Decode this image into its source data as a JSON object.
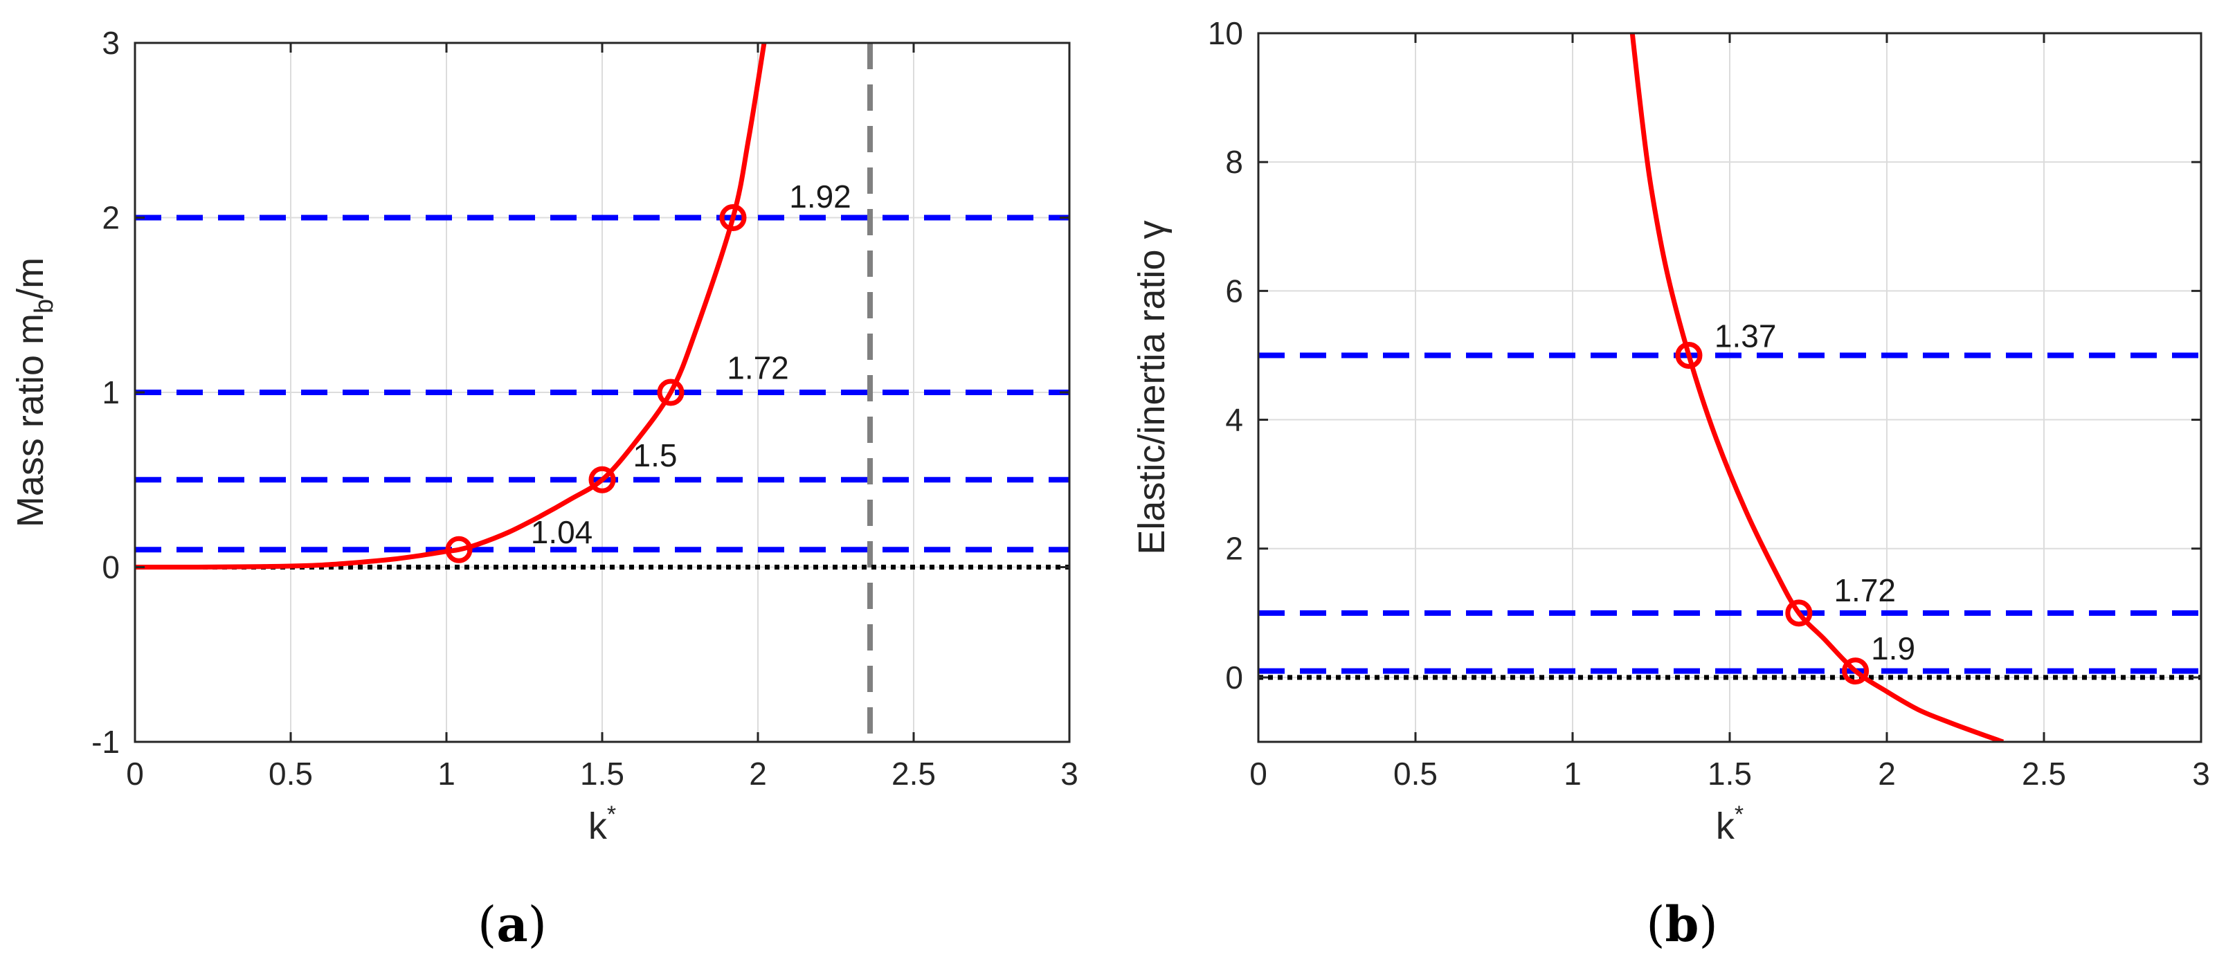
{
  "chart_data": [
    {
      "type": "line",
      "panel": "a",
      "caption": {
        "open": "(",
        "letter": "a",
        "close": ")"
      },
      "ylabel": {
        "prefix": "Mass ratio m",
        "sub": "b",
        "suffix": "/m"
      },
      "xlabel": {
        "base": "k",
        "sup": "*"
      },
      "xlim": [
        0,
        3
      ],
      "ylim": [
        -1,
        3
      ],
      "xticks": [
        0,
        0.5,
        1,
        1.5,
        2,
        2.5,
        3
      ],
      "xtick_labels": [
        "0",
        "0.5",
        "1",
        "1.5",
        "2",
        "2.5",
        "3"
      ],
      "yticks": [
        -1,
        0,
        1,
        2,
        3
      ],
      "ytick_labels": [
        "-1",
        "0",
        "1",
        "2",
        "3"
      ],
      "grid": true,
      "curve": {
        "color": "#ff0000",
        "x": [
          0.0,
          0.2,
          0.4,
          0.6,
          0.8,
          0.9,
          1.0,
          1.04,
          1.1,
          1.2,
          1.3,
          1.4,
          1.5,
          1.6,
          1.72,
          1.8,
          1.92,
          1.97,
          2.02
        ],
        "y": [
          0.0,
          0.0,
          0.003,
          0.012,
          0.04,
          0.062,
          0.09,
          0.1,
          0.13,
          0.2,
          0.29,
          0.39,
          0.5,
          0.7,
          1.0,
          1.35,
          2.0,
          2.45,
          3.0
        ]
      },
      "markers": {
        "x": [
          1.04,
          1.5,
          1.72,
          1.92
        ],
        "y": [
          0.1,
          0.5,
          1.0,
          2.0
        ],
        "color": "#ff0000"
      },
      "hlines": {
        "values": [
          0.1,
          0.5,
          1.0,
          2.0
        ],
        "color": "#0000ff",
        "style": "dashed"
      },
      "zero_line": {
        "value": 0,
        "color": "#000000",
        "style": "dotted"
      },
      "vline": {
        "value": 2.36,
        "color": "#808080",
        "style": "dashed"
      },
      "annotations": [
        {
          "text": "1.04",
          "x": 1.37,
          "y": 0.2
        },
        {
          "text": "1.5",
          "x": 1.67,
          "y": 0.64
        },
        {
          "text": "1.72",
          "x": 2.0,
          "y": 1.14
        },
        {
          "text": "1.92",
          "x": 2.2,
          "y": 2.12
        }
      ]
    },
    {
      "type": "line",
      "panel": "b",
      "caption": {
        "open": "(",
        "letter": "b",
        "close": ")"
      },
      "ylabel": {
        "prefix": "Elastic/inertia ratio γ",
        "sub": "",
        "suffix": ""
      },
      "xlabel": {
        "base": "k",
        "sup": "*"
      },
      "xlim": [
        0,
        3
      ],
      "ylim": [
        -1,
        10
      ],
      "xticks": [
        0,
        0.5,
        1,
        1.5,
        2,
        2.5,
        3
      ],
      "xtick_labels": [
        "0",
        "0.5",
        "1",
        "1.5",
        "2",
        "2.5",
        "3"
      ],
      "yticks": [
        0,
        2,
        4,
        6,
        8,
        10
      ],
      "ytick_labels": [
        "0",
        "2",
        "4",
        "6",
        "8",
        "10"
      ],
      "grid": true,
      "curve": {
        "color": "#ff0000",
        "x": [
          1.19,
          1.22,
          1.25,
          1.3,
          1.37,
          1.45,
          1.55,
          1.65,
          1.72,
          1.8,
          1.9,
          2.0,
          2.1,
          2.2,
          2.3,
          2.37
        ],
        "y": [
          10.0,
          8.7,
          7.6,
          6.3,
          5.0,
          3.8,
          2.6,
          1.6,
          1.0,
          0.6,
          0.1,
          -0.22,
          -0.5,
          -0.7,
          -0.88,
          -1.0
        ]
      },
      "markers": {
        "x": [
          1.37,
          1.72,
          1.9
        ],
        "y": [
          5.0,
          1.0,
          0.1
        ],
        "color": "#ff0000"
      },
      "hlines": {
        "values": [
          0.1,
          1.0,
          5.0
        ],
        "color": "#0000ff",
        "style": "dashed"
      },
      "zero_line": {
        "value": 0,
        "color": "#000000",
        "style": "dotted"
      },
      "annotations": [
        {
          "text": "1.37",
          "x": 1.55,
          "y": 5.3
        },
        {
          "text": "1.72",
          "x": 1.93,
          "y": 1.35
        },
        {
          "text": "1.9",
          "x": 2.02,
          "y": 0.45
        }
      ]
    }
  ]
}
